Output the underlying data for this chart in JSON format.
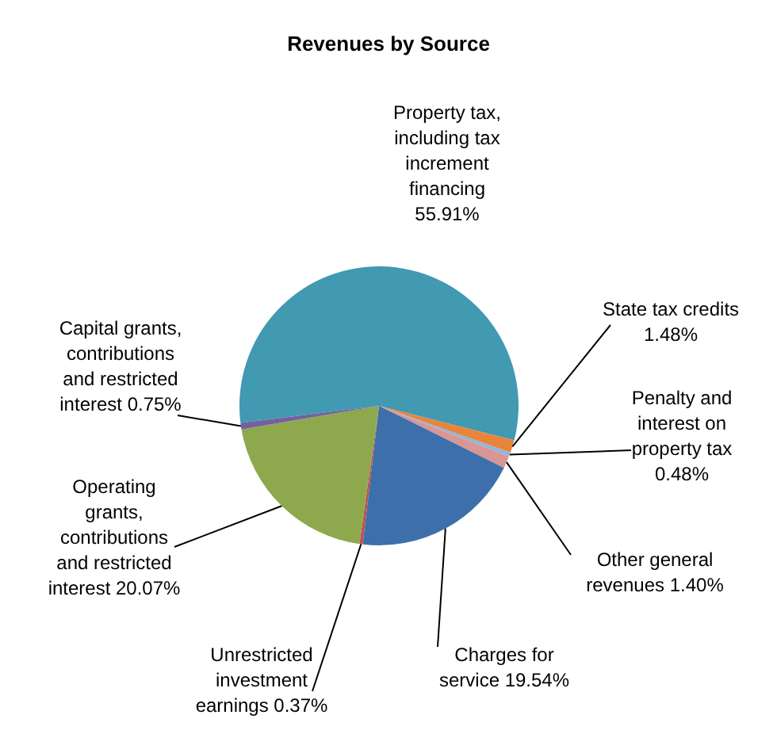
{
  "chart_data": {
    "type": "pie",
    "title": "Revenues by Source",
    "categories": [
      "Property tax,\nincluding tax\nincrement\nfinancing",
      "State tax credits",
      "Penalty and\ninterest on\nproperty tax",
      "Other general\nrevenues",
      "Charges for\nservice",
      "Unrestricted\ninvestment\nearnings",
      "Operating\ngrants,\ncontributions\nand restricted\ninterest",
      "Capital grants,\ncontributions\nand restricted\ninterest"
    ],
    "values": [
      55.91,
      1.48,
      0.48,
      1.4,
      19.54,
      0.37,
      20.07,
      0.75
    ],
    "value_labels": [
      "55.91%",
      "1.48%",
      "0.48%",
      "1.40%",
      "19.54%",
      "0.37%",
      "20.07%",
      "0.75%"
    ],
    "colors": [
      "#4199b2",
      "#e8853a",
      "#8fb6de",
      "#d99694",
      "#3d70aa",
      "#c0504d",
      "#8da84d",
      "#7460a0"
    ]
  }
}
